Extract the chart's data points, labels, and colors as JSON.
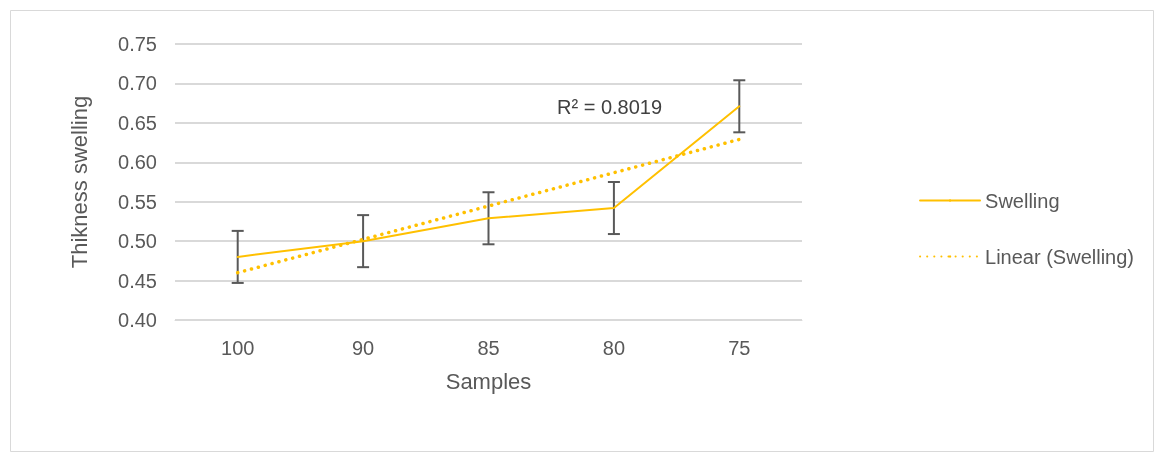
{
  "chart_data": {
    "type": "line",
    "xlabel": "Samples",
    "ylabel": "Thikness swelling",
    "categories": [
      "100",
      "90",
      "85",
      "80",
      "75"
    ],
    "series": [
      {
        "name": "Swelling",
        "color": "#ffc000",
        "values": [
          0.48,
          0.5,
          0.529,
          0.542,
          0.671
        ],
        "errors": [
          0.033,
          0.033,
          0.033,
          0.033,
          0.033
        ],
        "line_style": "solid"
      },
      {
        "name": "Linear (Swelling)",
        "type": "line",
        "color": "#ffc000",
        "x": [
          "100",
          "75"
        ],
        "values": [
          0.46,
          0.629
        ],
        "line_style": "dotted"
      }
    ],
    "annotations": [
      "R² = 0.8019"
    ],
    "ylim": [
      0.4,
      0.75
    ],
    "yticks": [
      {
        "value": 0.4,
        "label": "0.40"
      },
      0.45,
      {
        "value": 0.5,
        "label": "0.50"
      },
      0.55,
      {
        "value": 0.6,
        "label": "0.60"
      },
      0.65,
      {
        "value": 0.7,
        "label": "0.70"
      },
      0.75
    ],
    "grid": "y",
    "legend": "right",
    "marker": "none"
  }
}
